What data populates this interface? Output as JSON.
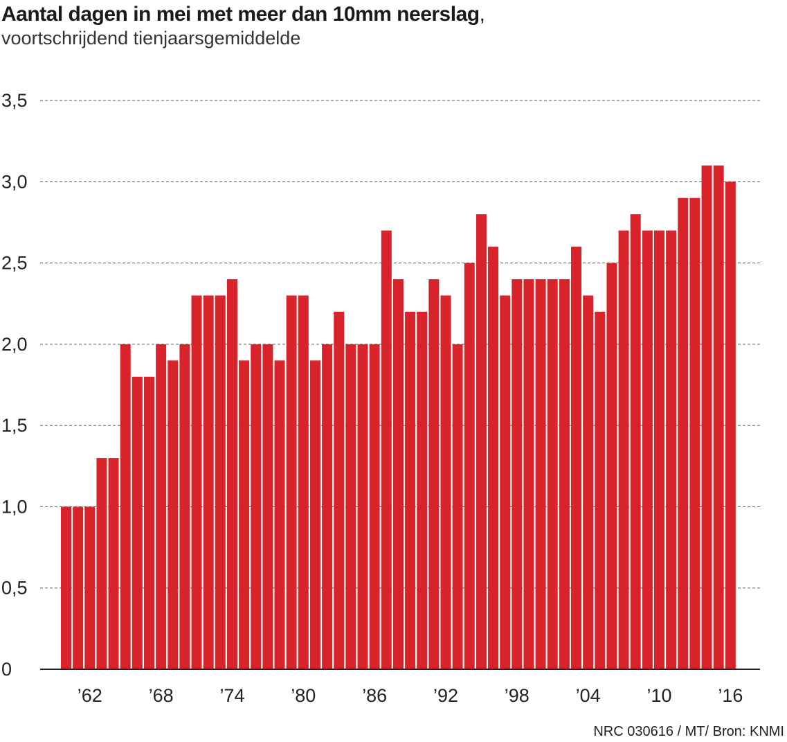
{
  "title": "Aantal dagen in mei met meer dan 10mm neerslag",
  "title_comma": ",",
  "subtitle": "voortschrijdend tienjaarsgemiddelde",
  "footer": "NRC 030616 / MT/ Bron: KNMI",
  "colors": {
    "bar": "#d9232b",
    "grid": "#555555",
    "axis": "#222222"
  },
  "chart_data": {
    "type": "bar",
    "years": [
      1960,
      1961,
      1962,
      1963,
      1964,
      1965,
      1966,
      1967,
      1968,
      1969,
      1970,
      1971,
      1972,
      1973,
      1974,
      1975,
      1976,
      1977,
      1978,
      1979,
      1980,
      1981,
      1982,
      1983,
      1984,
      1985,
      1986,
      1987,
      1988,
      1989,
      1990,
      1991,
      1992,
      1993,
      1994,
      1995,
      1996,
      1997,
      1998,
      1999,
      2000,
      2001,
      2002,
      2003,
      2004,
      2005,
      2006,
      2007,
      2008,
      2009,
      2010,
      2011,
      2012,
      2013,
      2014,
      2015,
      2016
    ],
    "values": [
      1.0,
      1.0,
      1.0,
      1.3,
      1.3,
      2.0,
      1.8,
      1.8,
      2.0,
      1.9,
      2.0,
      2.3,
      2.3,
      2.3,
      2.4,
      1.9,
      2.0,
      2.0,
      1.9,
      2.3,
      2.3,
      1.9,
      2.0,
      2.2,
      2.0,
      2.0,
      2.0,
      2.7,
      2.4,
      2.2,
      2.2,
      2.4,
      2.3,
      2.0,
      2.5,
      2.8,
      2.6,
      2.3,
      2.4,
      2.4,
      2.4,
      2.4,
      2.4,
      2.6,
      2.3,
      2.2,
      2.5,
      2.7,
      2.8,
      2.7,
      2.7,
      2.7,
      2.9,
      2.9,
      3.1,
      3.1,
      3.0
    ],
    "y_ticks": [
      {
        "value": 0,
        "label": "0"
      },
      {
        "value": 0.5,
        "label": "0,5"
      },
      {
        "value": 1.0,
        "label": "1,0"
      },
      {
        "value": 1.5,
        "label": "1,5"
      },
      {
        "value": 2.0,
        "label": "2,0"
      },
      {
        "value": 2.5,
        "label": "2,5"
      },
      {
        "value": 3.0,
        "label": "3,0"
      },
      {
        "value": 3.5,
        "label": "3,5"
      }
    ],
    "x_ticks": [
      {
        "year": 1962,
        "label": "’62"
      },
      {
        "year": 1968,
        "label": "’68"
      },
      {
        "year": 1974,
        "label": "’74"
      },
      {
        "year": 1980,
        "label": "’80"
      },
      {
        "year": 1986,
        "label": "’86"
      },
      {
        "year": 1992,
        "label": "’92"
      },
      {
        "year": 1998,
        "label": "’98"
      },
      {
        "year": 2004,
        "label": "’04"
      },
      {
        "year": 2010,
        "label": "’10"
      },
      {
        "year": 2016,
        "label": "’16"
      }
    ],
    "ylim": [
      0,
      3.5
    ],
    "grid": true,
    "grid_style": "dashed"
  }
}
